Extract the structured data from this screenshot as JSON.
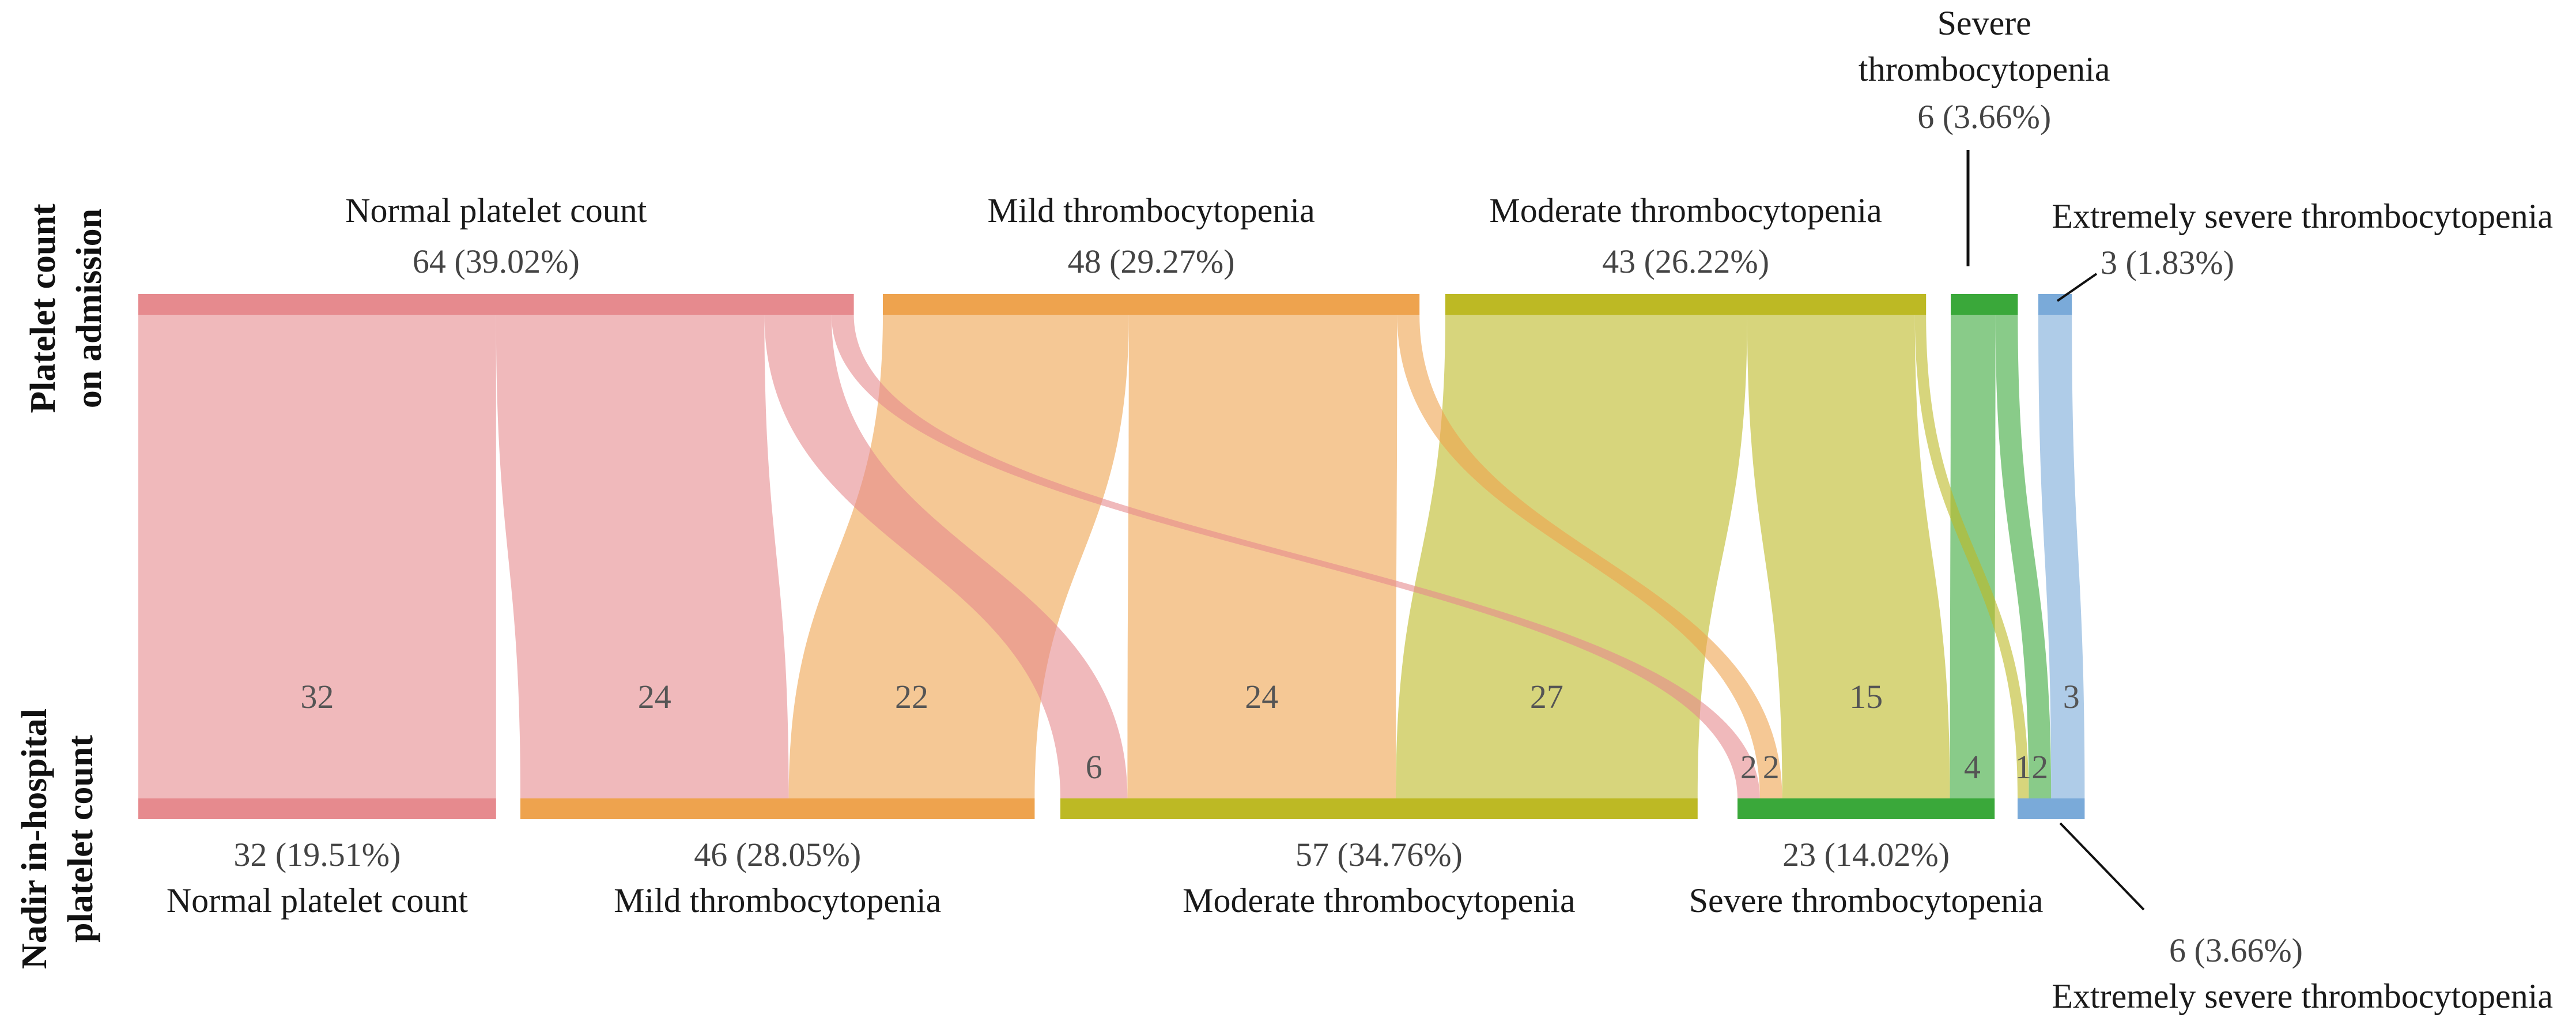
{
  "chart_data": {
    "type": "sankey",
    "axis_labels": {
      "top": [
        "Platelet count",
        "on admission"
      ],
      "bottom": [
        "Nadir in-hospital",
        "platelet count"
      ]
    },
    "admission_nodes": [
      {
        "name": "Normal platelet count",
        "value": 64,
        "label": "64 (39.02%)",
        "color": "#e68a8e"
      },
      {
        "name": "Mild thrombocytopenia",
        "value": 48,
        "label": "48 (29.27%)",
        "color": "#eea34e"
      },
      {
        "name": "Moderate thrombocytopenia",
        "value": 43,
        "label": "43 (26.22%)",
        "color": "#bdb924"
      },
      {
        "name": "Severe thrombocytopenia",
        "value": 6,
        "label": "6 (3.66%)",
        "color": "#3aa83a"
      },
      {
        "name": "Extremely severe thrombocytopenia",
        "value": 3,
        "label": "3 (1.83%)",
        "color": "#7aaad9"
      }
    ],
    "nadir_nodes": [
      {
        "name": "Normal platelet count",
        "value": 32,
        "label": "32 (19.51%)",
        "color": "#e68a8e"
      },
      {
        "name": "Mild thrombocytopenia",
        "value": 46,
        "label": "46 (28.05%)",
        "color": "#eea34e"
      },
      {
        "name": "Moderate thrombocytopenia",
        "value": 57,
        "label": "57 (34.76%)",
        "color": "#bdb924"
      },
      {
        "name": "Severe thrombocytopenia",
        "value": 23,
        "label": "23 (14.02%)",
        "color": "#3aa83a"
      },
      {
        "name": "Extremely severe thrombocytopenia",
        "value": 6,
        "label": "6 (3.66%)",
        "color": "#7aaad9"
      }
    ],
    "flows": [
      {
        "from": 0,
        "to": 0,
        "value": 32,
        "label": "32"
      },
      {
        "from": 0,
        "to": 1,
        "value": 24,
        "label": "24"
      },
      {
        "from": 0,
        "to": 2,
        "value": 6,
        "label": "6"
      },
      {
        "from": 0,
        "to": 3,
        "value": 2,
        "label": "2"
      },
      {
        "from": 1,
        "to": 1,
        "value": 22,
        "label": "22"
      },
      {
        "from": 1,
        "to": 2,
        "value": 24,
        "label": "24"
      },
      {
        "from": 1,
        "to": 3,
        "value": 2,
        "label": "2"
      },
      {
        "from": 2,
        "to": 2,
        "value": 27,
        "label": "27"
      },
      {
        "from": 2,
        "to": 3,
        "value": 15,
        "label": "15"
      },
      {
        "from": 2,
        "to": 4,
        "value": 1,
        "label": "1"
      },
      {
        "from": 3,
        "to": 3,
        "value": 4,
        "label": "4"
      },
      {
        "from": 3,
        "to": 4,
        "value": 2,
        "label": "2"
      },
      {
        "from": 4,
        "to": 4,
        "value": 3,
        "label": "3"
      }
    ]
  }
}
